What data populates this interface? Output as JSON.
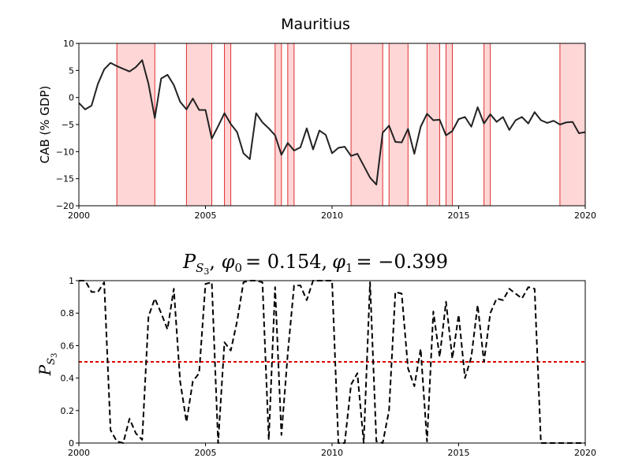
{
  "chart_data": [
    {
      "type": "line",
      "title": "Mauritius",
      "ylabel": "CAB (% GDP)",
      "xlabel": "",
      "xlim": [
        2000,
        2020
      ],
      "ylim": [
        -20,
        10
      ],
      "x_ticks": [
        "2000",
        "2005",
        "2010",
        "2015",
        "2020"
      ],
      "y_ticks": [
        "10",
        "5",
        "0",
        "−5",
        "−10",
        "−15",
        "−20"
      ],
      "grid": false,
      "shaded_regions_color": "#ffd6d6",
      "shaded_regions_edge": "#e03030",
      "shaded_regions": [
        [
          2001.5,
          2003.0
        ],
        [
          2004.25,
          2005.25
        ],
        [
          2005.75,
          2006.0
        ],
        [
          2007.75,
          2008.0
        ],
        [
          2008.25,
          2008.5
        ],
        [
          2010.75,
          2012.0
        ],
        [
          2012.25,
          2013.0
        ],
        [
          2013.75,
          2014.25
        ],
        [
          2014.5,
          2014.75
        ],
        [
          2016.0,
          2016.25
        ],
        [
          2019.0,
          2020.0
        ]
      ],
      "series": [
        {
          "color": "#222222",
          "x": [
            2000.0,
            2000.25,
            2000.5,
            2000.75,
            2001.0,
            2001.25,
            2001.5,
            2001.75,
            2002.0,
            2002.25,
            2002.5,
            2002.75,
            2003.0,
            2003.25,
            2003.5,
            2003.75,
            2004.0,
            2004.25,
            2004.5,
            2004.75,
            2005.0,
            2005.25,
            2005.5,
            2005.75,
            2006.0,
            2006.25,
            2006.5,
            2006.75,
            2007.0,
            2007.25,
            2007.5,
            2007.75,
            2008.0,
            2008.25,
            2008.5,
            2008.75,
            2009.0,
            2009.25,
            2009.5,
            2009.75,
            2010.0,
            2010.25,
            2010.5,
            2010.75,
            2011.0,
            2011.25,
            2011.5,
            2011.75,
            2012.0,
            2012.25,
            2012.5,
            2012.75,
            2013.0,
            2013.25,
            2013.5,
            2013.75,
            2014.0,
            2014.25,
            2014.5,
            2014.75,
            2015.0,
            2015.25,
            2015.5,
            2015.75,
            2016.0,
            2016.25,
            2016.5,
            2016.75,
            2017.0,
            2017.25,
            2017.5,
            2017.75,
            2018.0,
            2018.25,
            2018.5,
            2018.75,
            2019.0,
            2019.25,
            2019.5,
            2019.75,
            2020.0
          ],
          "y": [
            -1.0,
            -2.2,
            -1.5,
            2.5,
            5.2,
            6.4,
            5.8,
            5.3,
            4.8,
            5.6,
            6.9,
            2.5,
            -3.8,
            3.5,
            4.2,
            2.3,
            -0.8,
            -2.2,
            -0.2,
            -2.3,
            -2.3,
            -7.6,
            -5.3,
            -2.9,
            -4.9,
            -6.4,
            -10.3,
            -11.4,
            -2.9,
            -4.6,
            -5.7,
            -7.0,
            -10.6,
            -8.4,
            -9.8,
            -9.2,
            -5.7,
            -9.6,
            -6.1,
            -6.9,
            -10.3,
            -9.3,
            -9.1,
            -10.8,
            -10.4,
            -12.6,
            -14.8,
            -16.1,
            -6.5,
            -5.2,
            -8.2,
            -8.3,
            -5.8,
            -10.4,
            -5.4,
            -3.0,
            -4.2,
            -4.1,
            -7.0,
            -6.2,
            -4.0,
            -3.6,
            -5.4,
            -1.8,
            -4.8,
            -3.1,
            -4.5,
            -3.6,
            -6.0,
            -4.2,
            -3.6,
            -4.8,
            -2.7,
            -4.2,
            -4.7,
            -4.3,
            -5.0,
            -4.6,
            -4.5,
            -6.6,
            -6.4
          ]
        }
      ]
    },
    {
      "type": "line",
      "title": "P_{S_3}, φ_0 = 0.154, φ_1 = −0.399",
      "title_parts": {
        "p": "P",
        "p_sub": "S",
        "p_subsub": "3",
        "phi": "φ",
        "phi0_sub": "0",
        "phi0_val": "= 0.154,",
        "phi1_sub": "1",
        "phi1_val": "= −0.399"
      },
      "ylabel": "P_{S_3}",
      "ylabel_parts": {
        "p": "P",
        "p_sub": "S",
        "p_subsub": "3"
      },
      "xlabel": "",
      "xlim": [
        2000,
        2020
      ],
      "ylim": [
        0,
        1
      ],
      "x_ticks": [
        "2000",
        "2005",
        "2010",
        "2015",
        "2020"
      ],
      "y_ticks": [
        "1",
        "0.8",
        "0.6",
        "0.4",
        "0.2",
        "0"
      ],
      "grid": false,
      "reference_line": {
        "y": 0.5,
        "color": "#dd0000",
        "style": "dashed"
      },
      "series": [
        {
          "color": "#000000",
          "style": "dashed",
          "x": [
            2000.0,
            2000.25,
            2000.5,
            2000.75,
            2001.0,
            2001.25,
            2001.5,
            2001.75,
            2002.0,
            2002.25,
            2002.5,
            2002.75,
            2003.0,
            2003.25,
            2003.5,
            2003.75,
            2004.0,
            2004.25,
            2004.5,
            2004.75,
            2005.0,
            2005.25,
            2005.5,
            2005.75,
            2006.0,
            2006.25,
            2006.5,
            2006.75,
            2007.0,
            2007.25,
            2007.5,
            2007.75,
            2008.0,
            2008.25,
            2008.5,
            2008.75,
            2009.0,
            2009.25,
            2009.5,
            2009.75,
            2010.0,
            2010.25,
            2010.5,
            2010.75,
            2011.0,
            2011.25,
            2011.5,
            2011.75,
            2012.0,
            2012.25,
            2012.5,
            2012.75,
            2013.0,
            2013.25,
            2013.5,
            2013.75,
            2014.0,
            2014.25,
            2014.5,
            2014.75,
            2015.0,
            2015.25,
            2015.5,
            2015.75,
            2016.0,
            2016.25,
            2016.5,
            2016.75,
            2017.0,
            2017.25,
            2017.5,
            2017.75,
            2018.0,
            2018.25,
            2018.5,
            2018.75,
            2019.0,
            2019.25,
            2019.5,
            2019.75,
            2020.0
          ],
          "y": [
            1.0,
            1.0,
            0.93,
            0.93,
            0.99,
            0.08,
            0.01,
            0.0,
            0.15,
            0.06,
            0.02,
            0.78,
            0.89,
            0.8,
            0.7,
            0.95,
            0.38,
            0.13,
            0.38,
            0.43,
            0.98,
            0.99,
            0.0,
            0.62,
            0.57,
            0.75,
            0.99,
            1.0,
            1.0,
            0.99,
            0.02,
            0.96,
            0.05,
            0.55,
            0.97,
            0.97,
            0.88,
            1.0,
            1.0,
            1.0,
            1.0,
            0.0,
            0.0,
            0.36,
            0.43,
            0.0,
            0.99,
            0.01,
            0.0,
            0.2,
            0.93,
            0.92,
            0.46,
            0.35,
            0.58,
            0.01,
            0.81,
            0.53,
            0.87,
            0.52,
            0.79,
            0.4,
            0.53,
            0.85,
            0.5,
            0.8,
            0.89,
            0.88,
            0.95,
            0.92,
            0.89,
            0.96,
            0.95,
            0.0,
            0.0,
            0.0,
            0.0,
            0.0,
            0.0,
            0.0,
            0.0
          ]
        }
      ]
    }
  ]
}
